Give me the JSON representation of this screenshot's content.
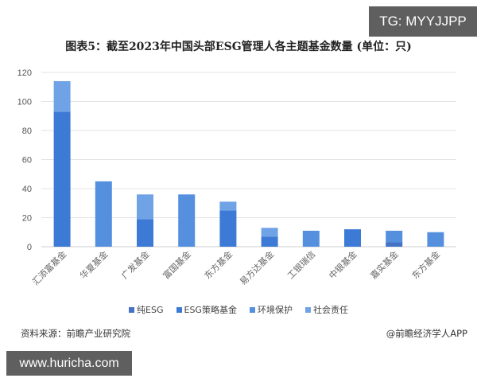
{
  "watermark_top": "TG: MYYJJPP",
  "watermark_bottom": "www.huricha.com",
  "source": "资料来源：前瞻产业研究院",
  "credit": "@前瞻经济学人APP",
  "chart_data": {
    "type": "bar",
    "stacked": true,
    "title": "图表5：截至2023年中国头部ESG管理人各主题基金数量 (单位：只)",
    "xlabel": "",
    "ylabel": "",
    "ylim": [
      0,
      120
    ],
    "yticks": [
      0,
      20,
      40,
      60,
      80,
      100,
      120
    ],
    "grid": true,
    "legend_position": "bottom",
    "categories": [
      "汇添富基金",
      "华夏基金",
      "广发基金",
      "富国基金",
      "东方基金",
      "易方达基金",
      "工银瑞信",
      "中银基金",
      "嘉实基金",
      "东方基金"
    ],
    "series": [
      {
        "name": "纯ESG",
        "color": "#4472c4",
        "values": [
          0,
          0,
          0,
          0,
          0,
          0,
          0,
          0,
          3,
          0
        ]
      },
      {
        "name": "ESG策略基金",
        "color": "#3d7ad6",
        "values": [
          93,
          0,
          19,
          0,
          25,
          7,
          0,
          12,
          0,
          0
        ]
      },
      {
        "name": "环境保护",
        "color": "#5590de",
        "values": [
          0,
          45,
          0,
          36,
          0,
          0,
          11,
          0,
          8,
          10
        ]
      },
      {
        "name": "社会责任",
        "color": "#6fa3e6",
        "values": [
          21,
          0,
          17,
          0,
          6,
          6,
          0,
          0,
          0,
          0
        ]
      }
    ]
  }
}
